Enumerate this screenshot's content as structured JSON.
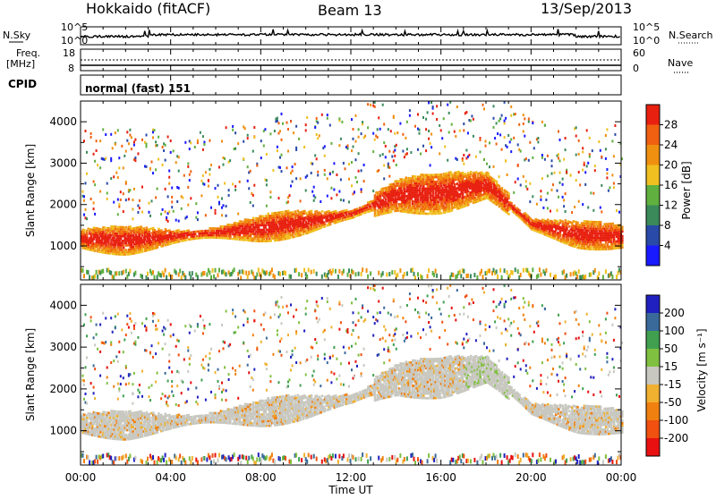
{
  "header": {
    "station": "Hokkaido (fitACF)",
    "beam": "Beam 13",
    "date": "13/Sep/2013"
  },
  "top_panels": {
    "nsky_label": "N.Sky",
    "nsearch_label": "N.Search",
    "noise_ticks_left": [
      "10^5",
      "10^0"
    ],
    "noise_ticks_right": [
      "10^5",
      "10^0"
    ],
    "freq_label_1": "Freq.",
    "freq_label_2": "[MHz]",
    "freq_ticks": [
      "18",
      "8"
    ],
    "nave_label": "Nave",
    "nave_ticks": [
      "60",
      "0"
    ],
    "cpid_label": "CPID",
    "cpid_text": "normal (fast) 151"
  },
  "colors": {
    "power": [
      "#1a1aff",
      "#2a4aa8",
      "#3a8a5a",
      "#60b040",
      "#f0c020",
      "#f09010",
      "#f06010",
      "#e82010"
    ],
    "velocity": [
      "#e81010",
      "#f05010",
      "#f08010",
      "#f0b030",
      "#c8c8c0",
      "#80c040",
      "#40a050",
      "#3a6a9a",
      "#2020c0"
    ]
  },
  "chart_data": [
    {
      "type": "heatmap",
      "name": "power",
      "ylabel": "Slant Range [km]",
      "xlabel": "Time UT",
      "x_ticks": [
        "00:00",
        "04:00",
        "08:00",
        "12:00",
        "16:00",
        "20:00",
        "00:00"
      ],
      "x_range_hours": [
        0,
        24
      ],
      "y_ticks": [
        1000,
        2000,
        3000,
        4000
      ],
      "y_range": [
        180,
        4500
      ],
      "colorbar_label": "Power [dB]",
      "colorbar_ticks": [
        4,
        8,
        12,
        16,
        20,
        24,
        28
      ],
      "colorbar_range": [
        0,
        32
      ],
      "dominant_band": [
        {
          "t": 0,
          "r": 1150
        },
        {
          "t": 2,
          "r": 1100
        },
        {
          "t": 4,
          "r": 1200
        },
        {
          "t": 6,
          "r": 1300
        },
        {
          "t": 8,
          "r": 1400
        },
        {
          "t": 10,
          "r": 1550
        },
        {
          "t": 12,
          "r": 1750
        },
        {
          "t": 14,
          "r": 2200
        },
        {
          "t": 16,
          "r": 2250
        },
        {
          "t": 18,
          "r": 2450
        },
        {
          "t": 20,
          "r": 1500
        },
        {
          "t": 22,
          "r": 1250
        },
        {
          "t": 24,
          "r": 1200
        }
      ]
    },
    {
      "type": "heatmap",
      "name": "velocity",
      "ylabel": "Slant Range [km]",
      "xlabel": "Time UT",
      "x_ticks": [
        "00:00",
        "04:00",
        "08:00",
        "12:00",
        "16:00",
        "20:00",
        "00:00"
      ],
      "x_range_hours": [
        0,
        24
      ],
      "y_ticks": [
        1000,
        2000,
        3000,
        4000
      ],
      "y_range": [
        180,
        4500
      ],
      "colorbar_label": "Velocity [m s⁻¹]",
      "colorbar_ticks": [
        200,
        100,
        50,
        15,
        -15,
        -50,
        -100,
        -200
      ],
      "colorbar_range": [
        -250,
        250
      ]
    }
  ]
}
